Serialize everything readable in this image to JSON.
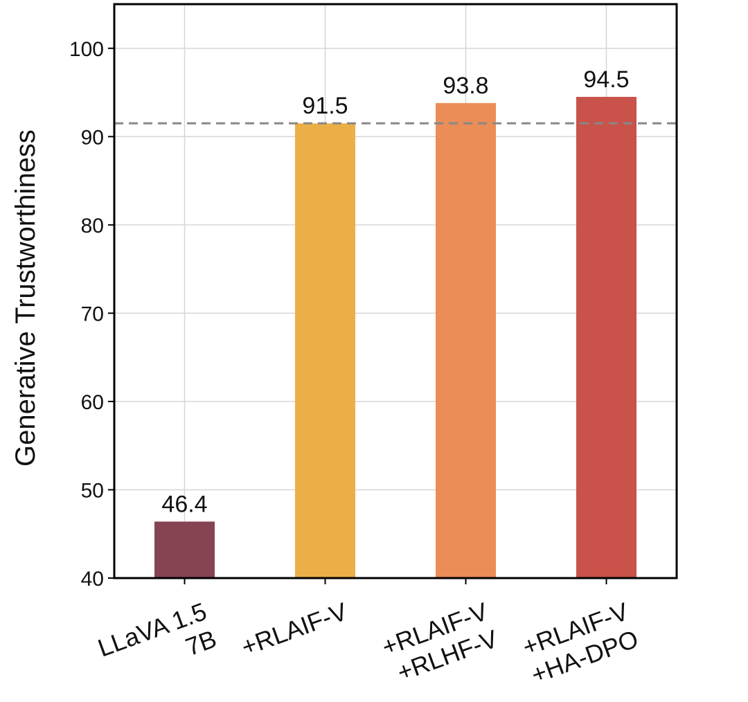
{
  "chart_data": {
    "type": "bar",
    "categories": [
      [
        "LLaVA 1.5",
        "7B"
      ],
      [
        "+RLAIF-V"
      ],
      [
        "+RLAIF-V",
        "+RLHF-V"
      ],
      [
        "+RLAIF-V",
        "+HA-DPO"
      ]
    ],
    "values": [
      46.4,
      91.5,
      93.8,
      94.5
    ],
    "value_labels": [
      "46.4",
      "91.5",
      "93.8",
      "94.5"
    ],
    "colors": [
      "#864453",
      "#ecaf48",
      "#ea8d57",
      "#c9524a"
    ],
    "ylabel": "Generative Trustworthiness",
    "ylim": [
      40,
      105
    ],
    "yticks": [
      40,
      50,
      60,
      70,
      80,
      90,
      100
    ],
    "reference_line": {
      "value": 91.5,
      "style": "dashed",
      "color": "#888888"
    },
    "grid": true
  }
}
